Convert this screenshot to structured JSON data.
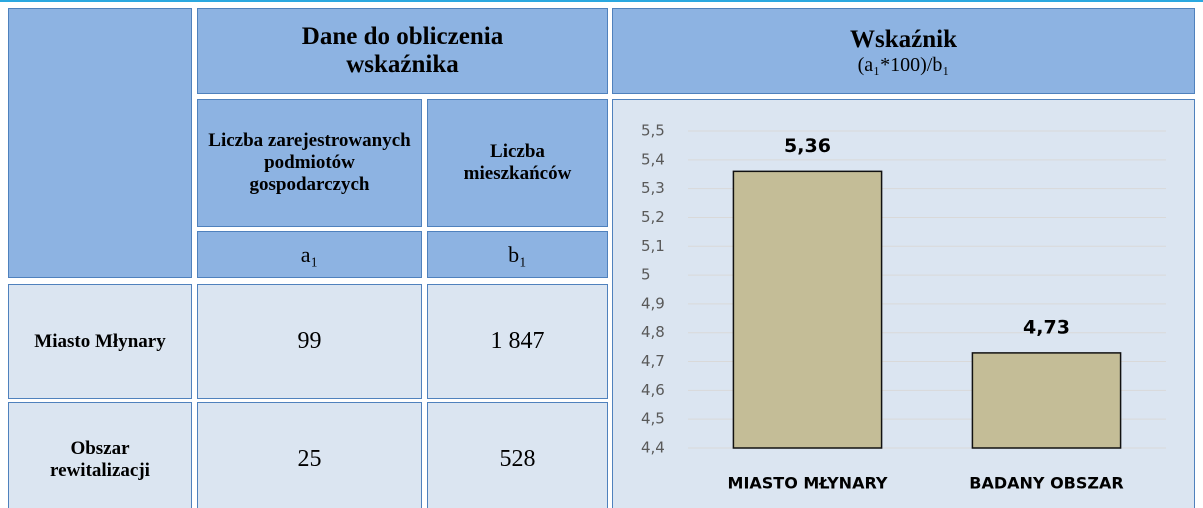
{
  "table": {
    "header": {
      "group": "Dane do obliczenia wskaźnika",
      "indicator": "Wskaźnik",
      "formula": "(a₁*100)/b₁"
    },
    "columns": [
      "Liczba zarejestrowanych podmiotów gospodarczych",
      "Liczba mieszkańców"
    ],
    "symbols": [
      "a₁",
      "b₁"
    ],
    "rows": [
      [
        "Miasto Młynary",
        "99",
        "1 847"
      ],
      [
        "Obszar rewitalizacji",
        "25",
        "528"
      ]
    ]
  },
  "chart_data": {
    "type": "bar",
    "categories": [
      "MIASTO MŁYNARY",
      "BADANY OBSZAR"
    ],
    "values": [
      5.36,
      4.73
    ],
    "value_labels": [
      "5,36",
      "4,73"
    ],
    "color": "#c4bd97",
    "ylim": [
      4.4,
      5.5
    ],
    "yticks": [
      {
        "value": 4.4,
        "label": "4,4"
      },
      {
        "value": 4.5,
        "label": "4,5"
      },
      {
        "value": 4.6,
        "label": "4,6"
      },
      {
        "value": 4.7,
        "label": "4,7"
      },
      {
        "value": 4.8,
        "label": "4,8"
      },
      {
        "value": 4.9,
        "label": "4,9"
      },
      5,
      {
        "value": 5.1,
        "label": "5,1"
      },
      {
        "value": 5.2,
        "label": "5,2"
      },
      {
        "value": 5.3,
        "label": "5,3"
      },
      {
        "value": 5.4,
        "label": "5,4"
      },
      {
        "value": 5.5,
        "label": "5,5"
      }
    ],
    "grid": true
  }
}
